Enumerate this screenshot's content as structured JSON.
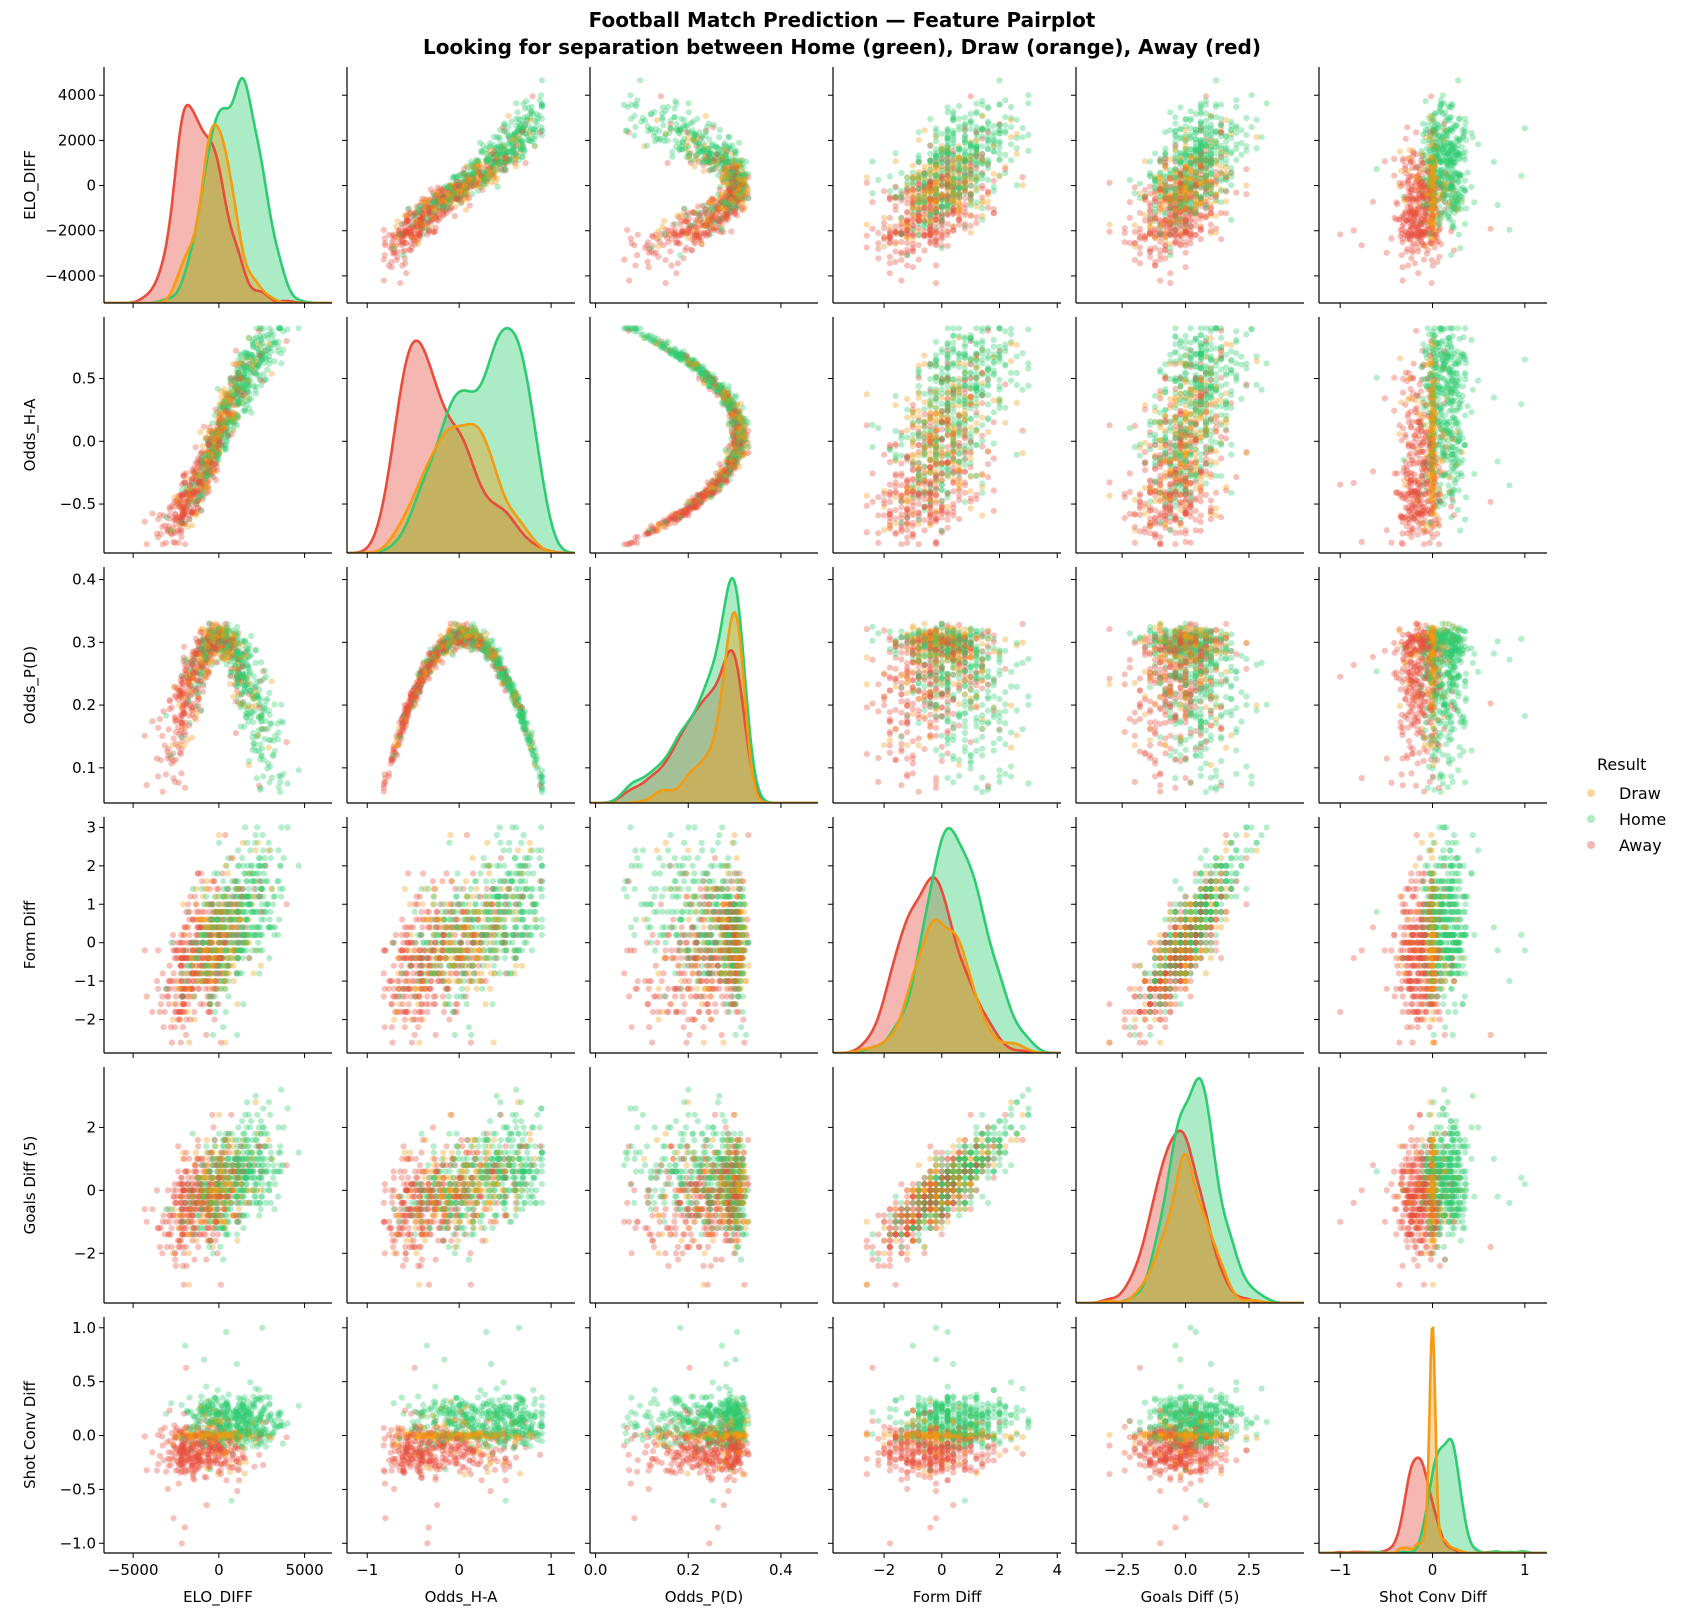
{
  "chart_data": {
    "type": "scatter",
    "kind": "pairplot",
    "diagonal": "kde",
    "title": "Football Match Prediction — Feature Pairplot",
    "subtitle": "Looking for separation between Home (green), Draw (orange), Away (red)",
    "features": [
      {
        "name": "ELO_DIFF",
        "xlim": [
          -6700,
          6600
        ],
        "ylim": [
          -5200,
          5250
        ],
        "xticks": [
          -5000,
          0,
          5000
        ],
        "xtick_labels": [
          "−5000",
          "0",
          "5000"
        ],
        "yticks": [
          -4000,
          -2000,
          0,
          2000,
          4000
        ],
        "ytick_labels": [
          "−4000",
          "−2000",
          "0",
          "2000",
          "4000"
        ]
      },
      {
        "name": "Odds_H-A",
        "xlim": [
          -1.22,
          1.26
        ],
        "ylim": [
          -0.89,
          0.99
        ],
        "xticks": [
          -1,
          0,
          1
        ],
        "xtick_labels": [
          "−1",
          "0",
          "1"
        ],
        "yticks": [
          -0.5,
          0,
          0.5
        ],
        "ytick_labels": [
          "−0.5",
          "0.0",
          "0.5"
        ]
      },
      {
        "name": "Odds_P(D)",
        "xlim": [
          -0.012,
          0.48
        ],
        "ylim": [
          0.044,
          0.42
        ],
        "xticks": [
          0,
          0.2,
          0.4
        ],
        "xtick_labels": [
          "0.0",
          "0.2",
          "0.4"
        ],
        "yticks": [
          0.1,
          0.2,
          0.3,
          0.4
        ],
        "ytick_labels": [
          "0.1",
          "0.2",
          "0.3",
          "0.4"
        ]
      },
      {
        "name": "Form Diff",
        "xlim": [
          -3.77,
          4.13
        ],
        "ylim": [
          -2.87,
          3.27
        ],
        "xticks": [
          -2,
          0,
          2,
          4
        ],
        "xtick_labels": [
          "−2",
          "0",
          "2",
          "4"
        ],
        "yticks": [
          -2,
          -1,
          0,
          1,
          2,
          3
        ],
        "ytick_labels": [
          "−2",
          "−1",
          "0",
          "1",
          "2",
          "3"
        ]
      },
      {
        "name": "Goals Diff (5)",
        "xlim": [
          -4.32,
          4.67
        ],
        "ylim": [
          -3.58,
          3.92
        ],
        "xticks": [
          -2.5,
          0,
          2.5
        ],
        "xtick_labels": [
          "−2.5",
          "0.0",
          "2.5"
        ],
        "yticks": [
          -2,
          0,
          2
        ],
        "ytick_labels": [
          "−2",
          "0",
          "2"
        ]
      },
      {
        "name": "Shot Conv Diff",
        "xlim": [
          -1.23,
          1.24
        ],
        "ylim": [
          -1.09,
          1.1
        ],
        "xticks": [
          -1,
          0,
          1
        ],
        "xtick_labels": [
          "−1",
          "0",
          "1"
        ],
        "yticks": [
          -1,
          -0.5,
          0,
          0.5,
          1
        ],
        "ytick_labels": [
          "−1.0",
          "−0.5",
          "0.0",
          "0.5",
          "1.0"
        ]
      }
    ],
    "classes": [
      {
        "name": "Draw",
        "color": "#f39c12"
      },
      {
        "name": "Home",
        "color": "#2ecc71"
      },
      {
        "name": "Away",
        "color": "#e74c3c"
      }
    ],
    "legend": {
      "title": "Result",
      "placement": "right"
    },
    "grid": false
  }
}
